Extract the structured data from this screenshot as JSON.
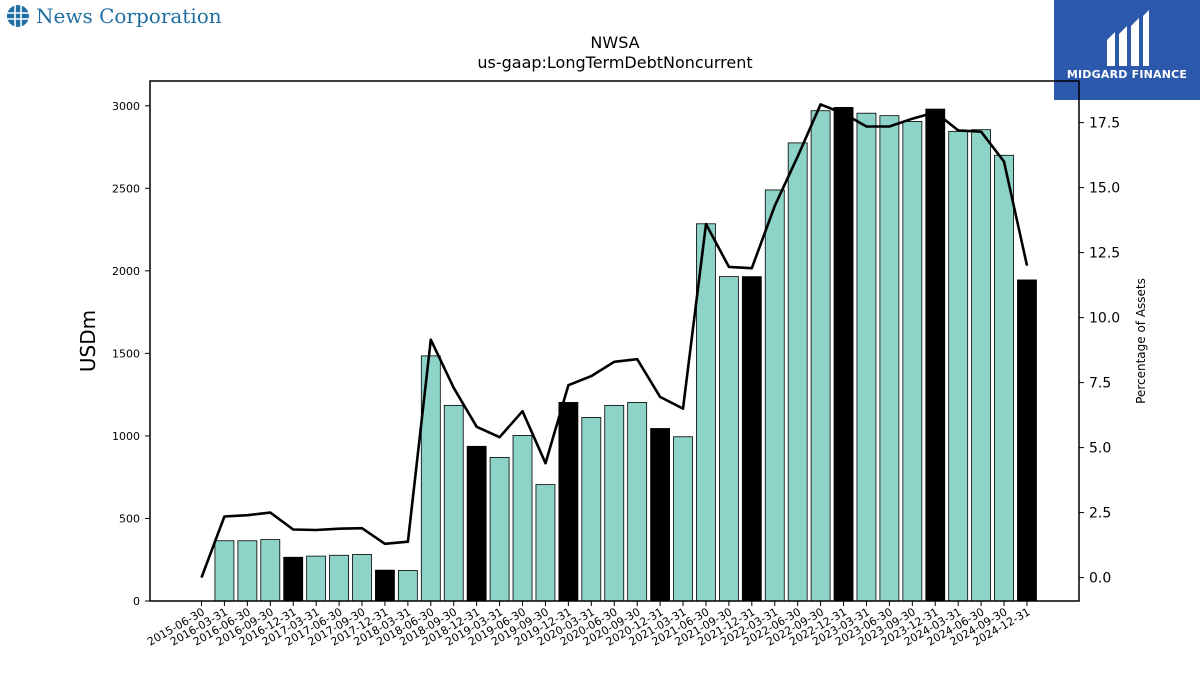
{
  "brand_left": {
    "name": "News Corporation",
    "icon": "globe-icon",
    "color": "#1f6fa3"
  },
  "brand_right": {
    "name": "MIDGARD FINANCE",
    "icon": "midgard-logo-icon",
    "background": "#2d59ad"
  },
  "chart_data": {
    "type": "bar",
    "title": "NWSA",
    "subtitle": "us-gaap:LongTermDebtNoncurrent",
    "ylabel": "USDm",
    "y2label": "Percentage of Assets",
    "ylim": [
      0,
      3150
    ],
    "y2lim": [
      -0.9,
      19.1
    ],
    "yticks": [
      0,
      500,
      1000,
      1500,
      2000,
      2500,
      3000
    ],
    "y2ticks": [
      0.0,
      2.5,
      5.0,
      7.5,
      10.0,
      12.5,
      15.0,
      17.5
    ],
    "y2tick_labels": [
      "0.0",
      "2.5",
      "5.0",
      "7.5",
      "10.0",
      "12.5",
      "15.0",
      "17.5"
    ],
    "grid": false,
    "colors": {
      "bar": "#8dd3c7",
      "bar_highlight": "#000000",
      "line": "#000000"
    },
    "categories": [
      "2015-06-30",
      "2016-03-31",
      "2016-06-30",
      "2016-09-30",
      "2016-12-31",
      "2017-03-31",
      "2017-06-30",
      "2017-09-30",
      "2017-12-31",
      "2018-03-31",
      "2018-06-30",
      "2018-09-30",
      "2018-12-31",
      "2019-03-31",
      "2019-06-30",
      "2019-09-30",
      "2019-12-31",
      "2020-03-31",
      "2020-06-30",
      "2020-09-30",
      "2020-12-31",
      "2021-03-31",
      "2021-06-30",
      "2021-09-30",
      "2021-12-31",
      "2022-03-31",
      "2022-06-30",
      "2022-09-30",
      "2022-12-31",
      "2023-03-31",
      "2023-06-30",
      "2023-09-30",
      "2023-12-31",
      "2024-03-31",
      "2024-06-30",
      "2024-09-30",
      "2024-12-31"
    ],
    "values": [
      0,
      365,
      365,
      372,
      265,
      272,
      277,
      282,
      187,
      185,
      1485,
      1185,
      937,
      870,
      1003,
      705,
      1203,
      1112,
      1185,
      1203,
      1045,
      995,
      2285,
      1965,
      1965,
      2490,
      2775,
      2970,
      2990,
      2955,
      2940,
      2905,
      2980,
      2845,
      2855,
      2700,
      1945
    ],
    "highlighted": [
      false,
      false,
      false,
      false,
      true,
      false,
      false,
      false,
      true,
      false,
      false,
      false,
      true,
      false,
      false,
      false,
      true,
      false,
      false,
      false,
      true,
      false,
      false,
      false,
      true,
      false,
      false,
      false,
      true,
      false,
      false,
      false,
      true,
      false,
      false,
      false,
      true
    ],
    "series": [
      {
        "name": "Percentage of Assets",
        "type": "line",
        "values": [
          0,
          2.35,
          2.4,
          2.5,
          1.85,
          1.83,
          1.88,
          1.9,
          1.3,
          1.38,
          9.15,
          7.3,
          5.8,
          5.4,
          6.4,
          4.4,
          7.4,
          7.75,
          8.3,
          8.4,
          6.95,
          6.5,
          13.6,
          11.95,
          11.9,
          14.3,
          16.2,
          18.2,
          17.85,
          17.35,
          17.35,
          17.65,
          17.9,
          17.2,
          17.15,
          16.0,
          12.0
        ]
      }
    ]
  }
}
